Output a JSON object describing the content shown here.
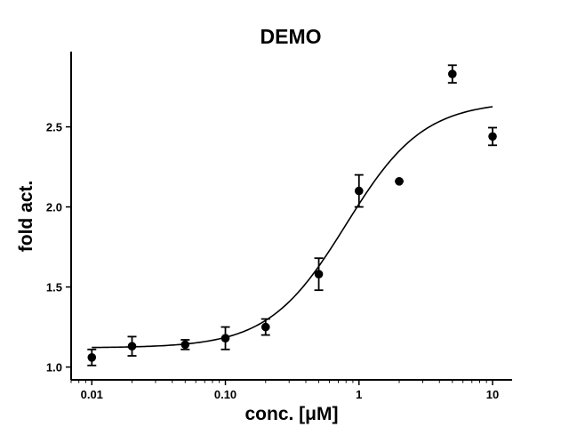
{
  "chart_data": {
    "type": "scatter",
    "title": "DEMO",
    "xlabel": "conc. [μM]",
    "ylabel": "fold act.",
    "xscale": "log",
    "xlim": [
      0.007,
      14
    ],
    "ylim": [
      0.92,
      2.97
    ],
    "x_ticks": [
      0.01,
      0.1,
      1,
      10
    ],
    "x_tick_labels": [
      "0.01",
      "0.10",
      "1",
      "10"
    ],
    "y_ticks": [
      1.0,
      1.5,
      2.0,
      2.5
    ],
    "y_tick_labels": [
      "1.0",
      "1.5",
      "2.0",
      "2.5"
    ],
    "grid": false,
    "series": [
      {
        "points": [
          {
            "x": 0.01,
            "y": 1.06,
            "err": 0.05
          },
          {
            "x": 0.02,
            "y": 1.13,
            "err": 0.06
          },
          {
            "x": 0.05,
            "y": 1.14,
            "err": 0.03
          },
          {
            "x": 0.1,
            "y": 1.18,
            "err": 0.07
          },
          {
            "x": 0.2,
            "y": 1.25,
            "err": 0.05
          },
          {
            "x": 0.5,
            "y": 1.58,
            "err": 0.1
          },
          {
            "x": 1.0,
            "y": 2.1,
            "err": 0.1
          },
          {
            "x": 2.0,
            "y": 2.16,
            "err": 0.0
          },
          {
            "x": 5.0,
            "y": 2.83,
            "err": 0.055
          },
          {
            "x": 10.0,
            "y": 2.44,
            "err": 0.055
          }
        ]
      }
    ],
    "fit_curve": {
      "model": "four-parameter logistic",
      "bottom": 1.12,
      "top": 2.66,
      "ec50": 0.8,
      "hill": 1.5,
      "x_range": [
        0.01,
        10
      ]
    }
  }
}
